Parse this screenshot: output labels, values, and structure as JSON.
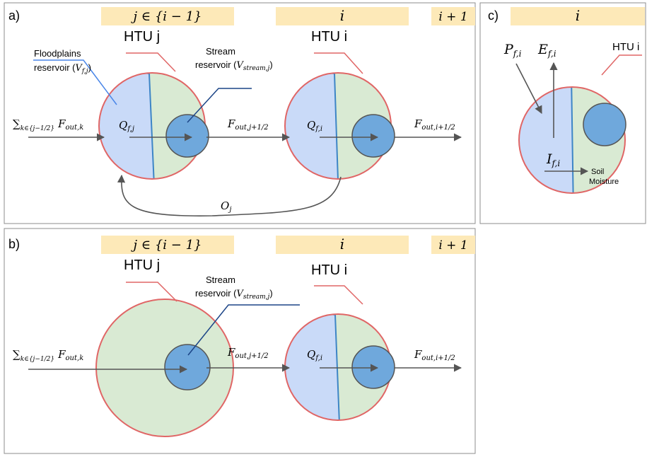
{
  "colors": {
    "panel_border": "#8c8c8c",
    "header_fill": "#fde9b8",
    "htu_fill": "#d9ead3",
    "htu_border": "#e06666",
    "floodplain_fill": "#c9daf8",
    "floodplain_border": "#3d85c6",
    "stream_fill": "#6fa8dc",
    "stream_border": "#555555",
    "arrow": "#555555",
    "label_line_blue": "#4a86e8",
    "label_line_navy": "#1c4587"
  },
  "panel_a": {
    "tag": "a)",
    "headers": {
      "j": "j ∈ {i − 1}",
      "i": "i",
      "next": "i + 1"
    },
    "htu_j_label": "HTU j",
    "htu_i_label": "HTU i",
    "floodplains_label_line1": "Floodplains",
    "floodplains_label_line2": "reservoir (",
    "floodplains_label_var": "V",
    "floodplains_label_sub": "f,j",
    "floodplains_label_end": ")",
    "stream_label_line1": "Stream",
    "stream_label_line2": "reservoir (",
    "stream_label_var": "V",
    "stream_label_sub": "stream,j",
    "stream_label_end": ")",
    "inflow": {
      "sum": "∑",
      "sum_sub": "k∈{j−1/2}",
      "var": "F",
      "sub": "out,k"
    },
    "q_j": {
      "var": "Q",
      "sub": "f,j"
    },
    "f_j": {
      "var": "F",
      "sub": "out,j+1/2"
    },
    "q_i": {
      "var": "Q",
      "sub": "f,i"
    },
    "f_i": {
      "var": "F",
      "sub": "out,i+1/2"
    },
    "o_j": {
      "var": "O",
      "sub": "j"
    }
  },
  "panel_b": {
    "tag": "b)",
    "headers": {
      "j": "j ∈ {i − 1}",
      "i": "i",
      "next": "i + 1"
    },
    "htu_j_label": "HTU j",
    "htu_i_label": "HTU i",
    "stream_label_line1": "Stream",
    "stream_label_line2": "reservoir (",
    "stream_label_var": "V",
    "stream_label_sub": "stream,j",
    "stream_label_end": ")",
    "inflow": {
      "sum": "∑",
      "sum_sub": "k∈{j−1/2}",
      "var": "F",
      "sub": "out,k"
    },
    "f_j": {
      "var": "F",
      "sub": "out,j+1/2"
    },
    "q_i": {
      "var": "Q",
      "sub": "f,i"
    },
    "f_i": {
      "var": "F",
      "sub": "out,i+1/2"
    }
  },
  "panel_c": {
    "tag": "c)",
    "header": "i",
    "htu_label": "HTU i",
    "p": {
      "var": "P",
      "sub": "f,i"
    },
    "e": {
      "var": "E",
      "sub": "f,i"
    },
    "inf": {
      "var": "I",
      "sub": "f,i"
    },
    "soil_line1": "Soil",
    "soil_line2": "Moisture"
  }
}
